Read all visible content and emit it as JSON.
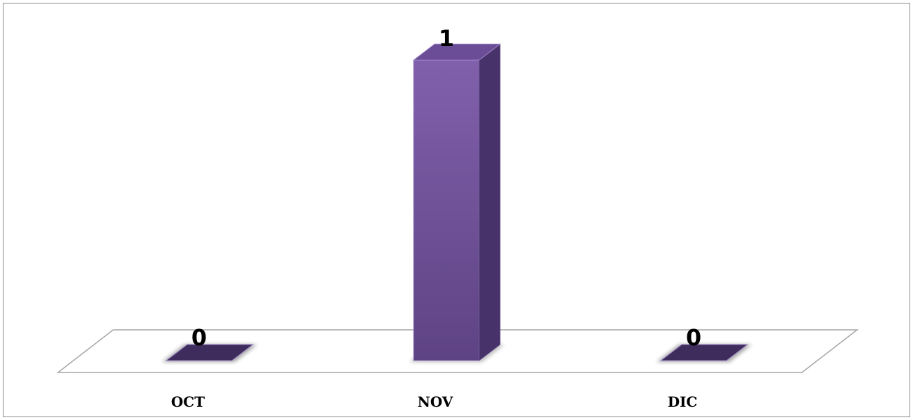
{
  "chart_data": {
    "type": "bar",
    "style": "3d-column",
    "title": "",
    "xlabel": "",
    "ylabel": "",
    "categories": [
      "OCT",
      "NOV",
      "DIC"
    ],
    "values": [
      0,
      1,
      0
    ],
    "data_labels": [
      "0",
      "1",
      "0"
    ],
    "ylim": [
      0,
      1
    ],
    "grid": false,
    "legend": "none",
    "colors": {
      "bar_front_top": "#8060ab",
      "bar_front_bottom": "#5e4384",
      "bar_side": "#47336a",
      "bar_top": "#6b4c97",
      "floor_stroke": "#a6a6a6",
      "frame_stroke": "#8c8c8c"
    }
  }
}
